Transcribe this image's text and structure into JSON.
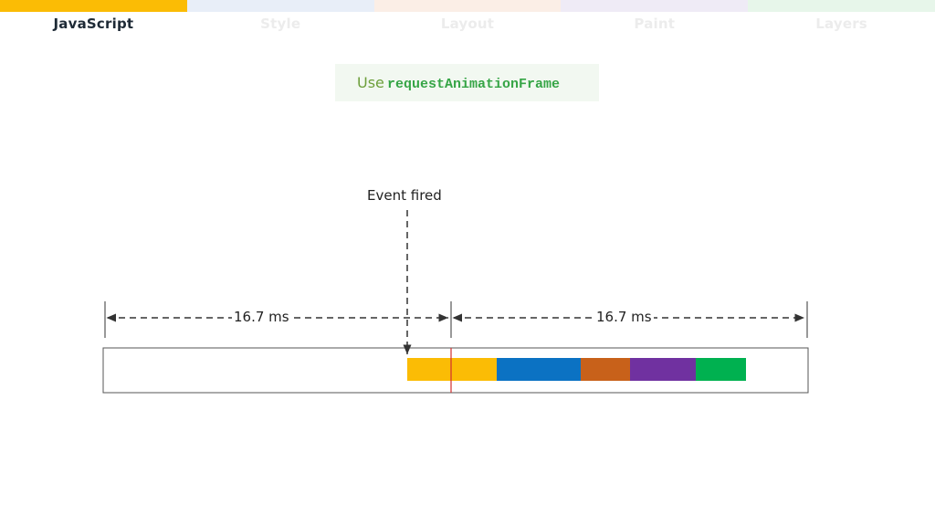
{
  "tabs": [
    {
      "label": "JavaScript",
      "color": "#FBBC05",
      "active": true
    },
    {
      "label": "Style",
      "color": "#E8EEF8",
      "active": false
    },
    {
      "label": "Layout",
      "color": "#FBEEE6",
      "active": false
    },
    {
      "label": "Paint",
      "color": "#EFEBF6",
      "active": false
    },
    {
      "label": "Layers",
      "color": "#E7F6EA",
      "active": false
    }
  ],
  "tip": {
    "prefix": "Use",
    "code": "requestAnimationFrame"
  },
  "diagram": {
    "event_label": "Event fired",
    "frame_left_label": "16.7 ms",
    "frame_right_label": "16.7 ms",
    "pipeline_segments": [
      {
        "name": "javascript",
        "color": "#FBBC05"
      },
      {
        "name": "style",
        "color": "#0B72C3"
      },
      {
        "name": "layout",
        "color": "#C8611A"
      },
      {
        "name": "paint",
        "color": "#7031A0"
      },
      {
        "name": "layers",
        "color": "#00B150"
      }
    ],
    "vsync_line_color": "#D32F2F"
  }
}
